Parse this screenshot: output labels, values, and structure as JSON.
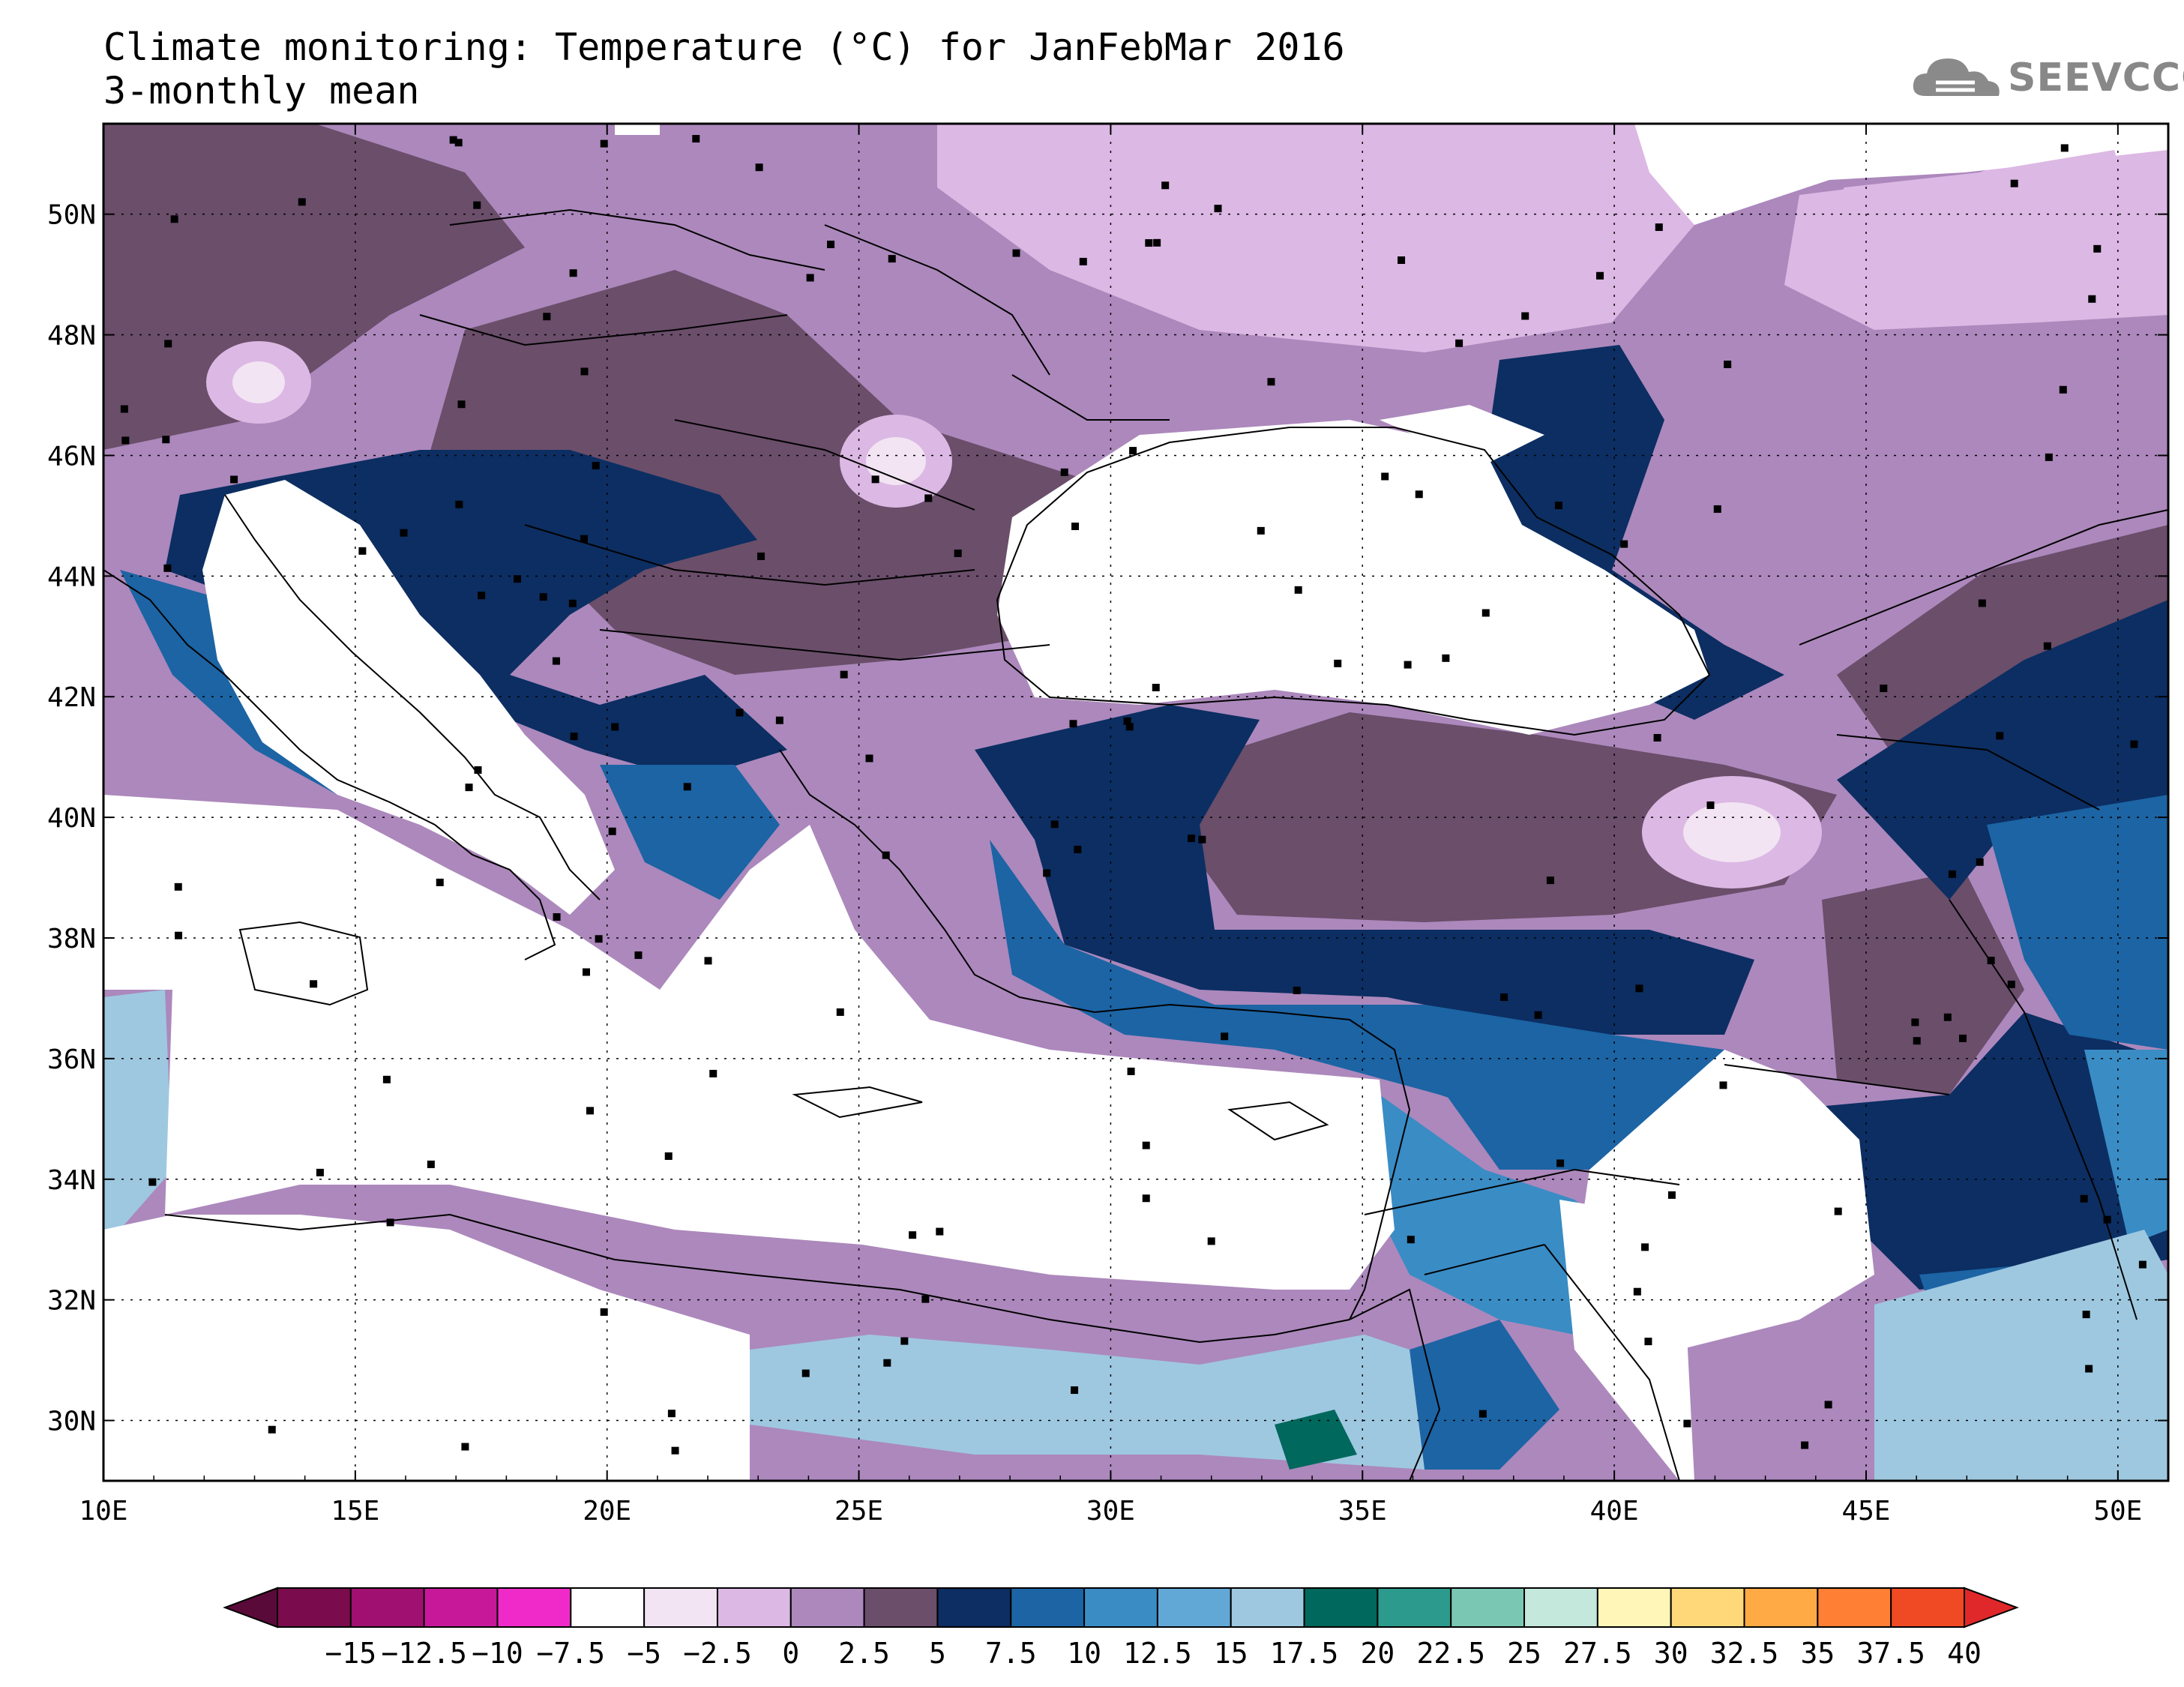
{
  "header": {
    "title_line1": "Climate monitoring: Temperature (°C) for JanFebMar 2016",
    "title_line2": "3-monthly mean",
    "logo_text": "SEEVCCC"
  },
  "map": {
    "lon_ticks": [
      "10E",
      "15E",
      "20E",
      "25E",
      "30E",
      "35E",
      "40E",
      "45E",
      "50E"
    ],
    "lat_ticks": [
      "30N",
      "32N",
      "34N",
      "36N",
      "38N",
      "40N",
      "42N",
      "44N",
      "46N",
      "48N",
      "50N"
    ]
  },
  "colorbar": {
    "labels": [
      "-15",
      "-12.5",
      "-10",
      "-7.5",
      "-5",
      "-2.5",
      "0",
      "2.5",
      "5",
      "7.5",
      "10",
      "12.5",
      "15",
      "17.5",
      "20",
      "22.5",
      "25",
      "27.5",
      "30",
      "32.5",
      "35",
      "37.5",
      "40"
    ],
    "colors": [
      "#7a0c4e",
      "#a01070",
      "#c8189a",
      "#f02ac8",
      "#ffffff",
      "#f2e4f2",
      "#dcb8e4",
      "#ac88bc",
      "#6a4e6a",
      "#0c2e62",
      "#1c64a4",
      "#3a8cc4",
      "#62a8d6",
      "#9ec8e0",
      "#00685c",
      "#2c9a8c",
      "#7ac8b4",
      "#c4e8dc",
      "#fff6b8",
      "#ffd87a",
      "#ffaa44",
      "#ff8034",
      "#f04a24"
    ],
    "low_arrow_color": "#5a0a38",
    "high_arrow_color": "#e0282a"
  }
}
